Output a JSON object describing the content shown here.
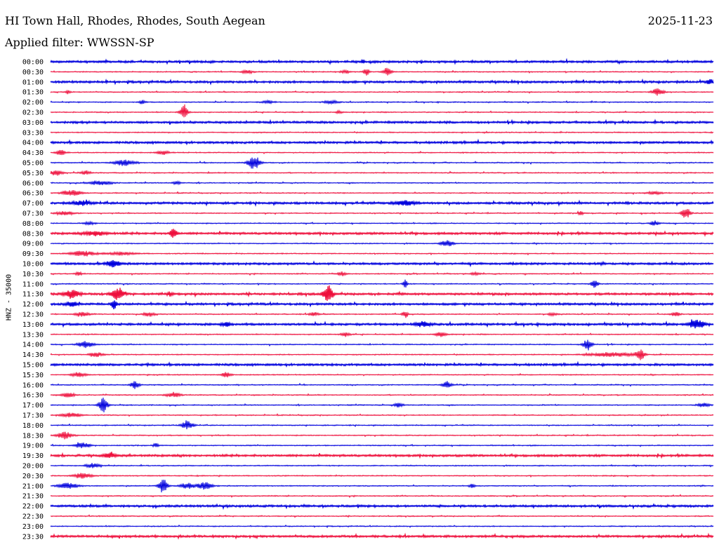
{
  "header": {
    "station": "HI Town Hall, Rhodes, Rhodes, South Aegean",
    "date": "2025-11-23",
    "filter_label": "Applied filter: WWSSN-SP",
    "channel_label": "HNZ - 35000"
  },
  "chart_data": {
    "type": "line",
    "colors": {
      "even": "#0000dd",
      "odd": "#ee0f3c"
    },
    "rows": [
      {
        "label": "00:00",
        "thick": true,
        "bursts": [
          [
            445,
            3,
            2
          ]
        ]
      },
      {
        "label": "00:30",
        "thick": false,
        "bursts": [
          [
            280,
            8,
            2
          ],
          [
            420,
            6,
            2
          ],
          [
            450,
            4,
            5
          ],
          [
            480,
            6,
            6
          ]
        ]
      },
      {
        "label": "01:00",
        "thick": true,
        "bursts": [
          [
            940,
            6,
            3
          ]
        ]
      },
      {
        "label": "01:30",
        "thick": false,
        "bursts": [
          [
            25,
            3,
            3
          ],
          [
            865,
            8,
            5
          ]
        ]
      },
      {
        "label": "02:00",
        "thick": false,
        "bursts": [
          [
            130,
            4,
            3
          ],
          [
            310,
            8,
            2
          ],
          [
            400,
            10,
            2
          ]
        ]
      },
      {
        "label": "02:30",
        "thick": false,
        "bursts": [
          [
            190,
            5,
            12
          ],
          [
            410,
            4,
            2
          ]
        ]
      },
      {
        "label": "03:00",
        "thick": true,
        "bursts": []
      },
      {
        "label": "03:30",
        "thick": false,
        "bursts": []
      },
      {
        "label": "04:00",
        "thick": true,
        "bursts": []
      },
      {
        "label": "04:30",
        "thick": false,
        "bursts": [
          [
            15,
            6,
            4
          ],
          [
            160,
            8,
            3
          ]
        ]
      },
      {
        "label": "05:00",
        "thick": false,
        "bursts": [
          [
            105,
            14,
            4
          ],
          [
            290,
            8,
            10
          ]
        ]
      },
      {
        "label": "05:30",
        "thick": false,
        "bursts": [
          [
            8,
            8,
            4
          ],
          [
            50,
            6,
            3
          ]
        ]
      },
      {
        "label": "06:00",
        "thick": false,
        "bursts": [
          [
            70,
            16,
            3
          ],
          [
            180,
            6,
            2
          ]
        ]
      },
      {
        "label": "06:30",
        "thick": false,
        "bursts": [
          [
            30,
            14,
            4
          ],
          [
            860,
            10,
            2
          ]
        ]
      },
      {
        "label": "07:00",
        "thick": true,
        "bursts": [
          [
            45,
            12,
            3
          ],
          [
            505,
            14,
            3
          ]
        ]
      },
      {
        "label": "07:30",
        "thick": false,
        "bursts": [
          [
            20,
            12,
            3
          ],
          [
            755,
            3,
            4
          ],
          [
            905,
            6,
            8
          ]
        ]
      },
      {
        "label": "08:00",
        "thick": false,
        "bursts": [
          [
            55,
            8,
            2
          ],
          [
            860,
            6,
            3
          ]
        ]
      },
      {
        "label": "08:30",
        "thick": true,
        "bursts": [
          [
            65,
            14,
            3
          ],
          [
            175,
            4,
            8
          ]
        ]
      },
      {
        "label": "09:00",
        "thick": false,
        "bursts": [
          [
            565,
            8,
            5
          ]
        ]
      },
      {
        "label": "09:30",
        "thick": false,
        "bursts": [
          [
            45,
            16,
            4
          ],
          [
            100,
            20,
            2
          ]
        ]
      },
      {
        "label": "10:00",
        "thick": true,
        "bursts": [
          [
            90,
            8,
            5
          ]
        ]
      },
      {
        "label": "10:30",
        "thick": false,
        "bursts": [
          [
            40,
            4,
            3
          ],
          [
            415,
            6,
            3
          ],
          [
            605,
            6,
            2
          ]
        ]
      },
      {
        "label": "11:00",
        "thick": false,
        "bursts": [
          [
            505,
            3,
            6
          ],
          [
            775,
            5,
            5
          ]
        ]
      },
      {
        "label": "11:30",
        "thick": true,
        "bursts": [
          [
            30,
            10,
            5
          ],
          [
            95,
            8,
            8
          ],
          [
            170,
            4,
            3
          ],
          [
            395,
            6,
            12
          ]
        ]
      },
      {
        "label": "12:00",
        "thick": true,
        "bursts": [
          [
            30,
            8,
            3
          ],
          [
            90,
            4,
            6
          ]
        ]
      },
      {
        "label": "12:30",
        "thick": false,
        "bursts": [
          [
            45,
            10,
            3
          ],
          [
            140,
            8,
            3
          ],
          [
            375,
            6,
            3
          ],
          [
            505,
            4,
            5
          ],
          [
            715,
            6,
            2
          ],
          [
            890,
            6,
            3
          ]
        ]
      },
      {
        "label": "13:00",
        "thick": true,
        "bursts": [
          [
            250,
            6,
            3
          ],
          [
            530,
            10,
            3
          ],
          [
            920,
            10,
            6
          ]
        ]
      },
      {
        "label": "13:30",
        "thick": false,
        "bursts": [
          [
            420,
            6,
            3
          ],
          [
            555,
            8,
            3
          ]
        ]
      },
      {
        "label": "14:00",
        "thick": false,
        "bursts": [
          [
            50,
            10,
            5
          ],
          [
            765,
            6,
            8
          ]
        ]
      },
      {
        "label": "14:30",
        "thick": false,
        "bursts": [
          [
            65,
            10,
            3
          ],
          [
            800,
            30,
            3
          ],
          [
            840,
            6,
            7
          ]
        ]
      },
      {
        "label": "15:00",
        "thick": true,
        "bursts": []
      },
      {
        "label": "15:30",
        "thick": false,
        "bursts": [
          [
            40,
            10,
            3
          ],
          [
            250,
            6,
            4
          ]
        ]
      },
      {
        "label": "16:00",
        "thick": false,
        "bursts": [
          [
            120,
            6,
            5
          ],
          [
            565,
            6,
            5
          ]
        ]
      },
      {
        "label": "16:30",
        "thick": false,
        "bursts": [
          [
            25,
            8,
            4
          ],
          [
            175,
            10,
            3
          ]
        ]
      },
      {
        "label": "17:00",
        "thick": false,
        "bursts": [
          [
            75,
            6,
            10
          ],
          [
            495,
            6,
            3
          ],
          [
            930,
            8,
            3
          ]
        ]
      },
      {
        "label": "17:30",
        "thick": false,
        "bursts": [
          [
            30,
            14,
            3
          ]
        ]
      },
      {
        "label": "18:00",
        "thick": false,
        "bursts": [
          [
            195,
            8,
            6
          ]
        ]
      },
      {
        "label": "18:30",
        "thick": false,
        "bursts": [
          [
            20,
            10,
            5
          ]
        ]
      },
      {
        "label": "19:00",
        "thick": false,
        "bursts": [
          [
            45,
            10,
            4
          ],
          [
            150,
            4,
            3
          ]
        ]
      },
      {
        "label": "19:30",
        "thick": true,
        "bursts": [
          [
            85,
            8,
            3
          ]
        ]
      },
      {
        "label": "20:00",
        "thick": false,
        "bursts": [
          [
            60,
            10,
            3
          ]
        ]
      },
      {
        "label": "20:30",
        "thick": false,
        "bursts": [
          [
            45,
            12,
            4
          ]
        ]
      },
      {
        "label": "21:00",
        "thick": false,
        "bursts": [
          [
            25,
            14,
            4
          ],
          [
            160,
            6,
            10
          ],
          [
            195,
            10,
            4
          ],
          [
            220,
            10,
            5
          ],
          [
            600,
            4,
            3
          ]
        ]
      },
      {
        "label": "21:30",
        "thick": false,
        "bursts": []
      },
      {
        "label": "22:00",
        "thick": true,
        "bursts": []
      },
      {
        "label": "22:30",
        "thick": false,
        "bursts": []
      },
      {
        "label": "23:00",
        "thick": false,
        "bursts": []
      },
      {
        "label": "23:30",
        "thick": true,
        "bursts": []
      }
    ]
  }
}
